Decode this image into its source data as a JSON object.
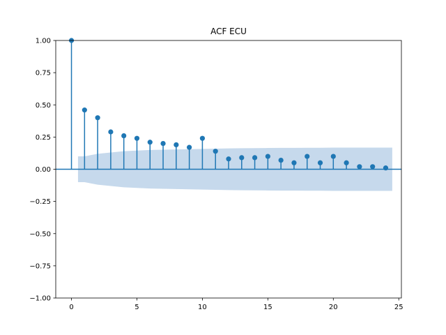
{
  "chart_data": {
    "type": "stem",
    "title": "ACF ECU",
    "xlabel": "",
    "ylabel": "",
    "xlim": [
      -1.2,
      25.2
    ],
    "ylim": [
      -1.0,
      1.0
    ],
    "xticks": [
      0,
      5,
      10,
      15,
      20,
      25
    ],
    "xtick_labels": [
      "0",
      "5",
      "10",
      "15",
      "20",
      "25"
    ],
    "yticks": [
      -1.0,
      -0.75,
      -0.5,
      -0.25,
      0.0,
      0.25,
      0.5,
      0.75,
      1.0
    ],
    "ytick_labels": [
      "−1.00",
      "−0.75",
      "−0.50",
      "−0.25",
      "0.00",
      "0.25",
      "0.50",
      "0.75",
      "1.00"
    ],
    "grid": false,
    "series": [
      {
        "x": [
          0,
          1,
          2,
          3,
          4,
          5,
          6,
          7,
          8,
          9,
          10,
          11,
          12,
          13,
          14,
          15,
          16,
          17,
          18,
          19,
          20,
          21,
          22,
          23,
          24
        ],
        "values": [
          1.0,
          0.46,
          0.4,
          0.29,
          0.26,
          0.24,
          0.21,
          0.2,
          0.19,
          0.17,
          0.24,
          0.14,
          0.08,
          0.09,
          0.09,
          0.1,
          0.07,
          0.05,
          0.1,
          0.05,
          0.1,
          0.05,
          0.02,
          0.02,
          0.01
        ]
      }
    ],
    "confidence_band": {
      "x": [
        0.5,
        1,
        2,
        3,
        4,
        5,
        6,
        7,
        8,
        9,
        10,
        11,
        12,
        13,
        14,
        15,
        16,
        17,
        18,
        19,
        20,
        21,
        22,
        23,
        24,
        24.5
      ],
      "upper": [
        0.1,
        0.1,
        0.12,
        0.13,
        0.14,
        0.145,
        0.15,
        0.152,
        0.154,
        0.156,
        0.158,
        0.16,
        0.162,
        0.163,
        0.164,
        0.165,
        0.166,
        0.166,
        0.167,
        0.167,
        0.168,
        0.168,
        0.168,
        0.168,
        0.168,
        0.168
      ]
    },
    "colors": {
      "stem": "#1f77b4",
      "band": "#c6d9ec",
      "baseline": "#1f77b4",
      "axes": "#000000"
    }
  }
}
